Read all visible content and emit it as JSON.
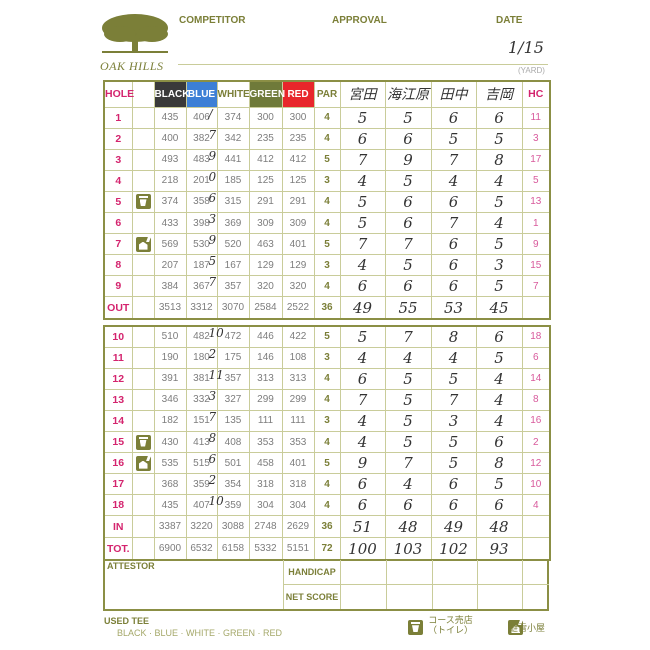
{
  "logo": {
    "text": "OAK HILLS",
    "icon": "oak-tree-icon"
  },
  "header": {
    "competitor": "COMPETITOR",
    "approval": "APPROVAL",
    "date": "DATE",
    "date_value": "1/15",
    "yard": "(YARD)"
  },
  "columns": {
    "hole": "HOLE",
    "black": "BLACK",
    "blue": "BLUE",
    "white": "WHITE",
    "green": "GREEN",
    "red": "RED",
    "par": "PAR",
    "hc": "HC"
  },
  "players": [
    "宮田",
    "海江原",
    "田中",
    "吉岡"
  ],
  "front": [
    {
      "hole": "1",
      "icon": "",
      "black": "435",
      "blue": "406",
      "white": "374",
      "green": "300",
      "red": "300",
      "par": "4",
      "mark": "/",
      "scores": [
        "5",
        "5",
        "6",
        "6"
      ],
      "hc": "11"
    },
    {
      "hole": "2",
      "icon": "",
      "black": "400",
      "blue": "382",
      "white": "342",
      "green": "235",
      "red": "235",
      "par": "4",
      "mark": "7",
      "scores": [
        "6",
        "6",
        "5",
        "5"
      ],
      "hc": "3"
    },
    {
      "hole": "3",
      "icon": "",
      "black": "493",
      "blue": "483",
      "white": "441",
      "green": "412",
      "red": "412",
      "par": "5",
      "mark": "9",
      "scores": [
        "7",
        "9",
        "7",
        "8"
      ],
      "hc": "17"
    },
    {
      "hole": "4",
      "icon": "",
      "black": "218",
      "blue": "201",
      "white": "185",
      "green": "125",
      "red": "125",
      "par": "3",
      "mark": "0",
      "scores": [
        "4",
        "5",
        "4",
        "4"
      ],
      "hc": "5"
    },
    {
      "hole": "5",
      "icon": "shop",
      "black": "374",
      "blue": "358",
      "white": "315",
      "green": "291",
      "red": "291",
      "par": "4",
      "mark": "6",
      "scores": [
        "5",
        "6",
        "6",
        "5"
      ],
      "hc": "13"
    },
    {
      "hole": "6",
      "icon": "",
      "black": "433",
      "blue": "398",
      "white": "369",
      "green": "309",
      "red": "309",
      "par": "4",
      "mark": "3",
      "scores": [
        "5",
        "6",
        "7",
        "4"
      ],
      "hc": "1"
    },
    {
      "hole": "7",
      "icon": "shelter",
      "black": "569",
      "blue": "530",
      "white": "520",
      "green": "463",
      "red": "401",
      "par": "5",
      "mark": "9",
      "scores": [
        "7",
        "7",
        "6",
        "5"
      ],
      "hc": "9"
    },
    {
      "hole": "8",
      "icon": "",
      "black": "207",
      "blue": "187",
      "white": "167",
      "green": "129",
      "red": "129",
      "par": "3",
      "mark": "5",
      "scores": [
        "4",
        "5",
        "6",
        "3"
      ],
      "hc": "15"
    },
    {
      "hole": "9",
      "icon": "",
      "black": "384",
      "blue": "367",
      "white": "357",
      "green": "320",
      "red": "320",
      "par": "4",
      "mark": "7",
      "scores": [
        "6",
        "6",
        "6",
        "5"
      ],
      "hc": "7"
    }
  ],
  "out": {
    "label": "OUT",
    "black": "3513",
    "blue": "3312",
    "white": "3070",
    "green": "2584",
    "red": "2522",
    "par": "36",
    "scores": [
      "49",
      "55",
      "53",
      "45"
    ]
  },
  "back": [
    {
      "hole": "10",
      "icon": "",
      "black": "510",
      "blue": "482",
      "white": "472",
      "green": "446",
      "red": "422",
      "par": "5",
      "mark": "10",
      "scores": [
        "5",
        "7",
        "8",
        "6"
      ],
      "hc": "18"
    },
    {
      "hole": "11",
      "icon": "",
      "black": "190",
      "blue": "180",
      "white": "175",
      "green": "146",
      "red": "108",
      "par": "3",
      "mark": "2",
      "scores": [
        "4",
        "4",
        "4",
        "5"
      ],
      "hc": "6"
    },
    {
      "hole": "12",
      "icon": "",
      "black": "391",
      "blue": "381",
      "white": "357",
      "green": "313",
      "red": "313",
      "par": "4",
      "mark": "11",
      "scores": [
        "6",
        "5",
        "5",
        "4"
      ],
      "hc": "14"
    },
    {
      "hole": "13",
      "icon": "",
      "black": "346",
      "blue": "332",
      "white": "327",
      "green": "299",
      "red": "299",
      "par": "4",
      "mark": "3",
      "scores": [
        "7",
        "5",
        "7",
        "4"
      ],
      "hc": "8"
    },
    {
      "hole": "14",
      "icon": "",
      "black": "182",
      "blue": "151",
      "white": "135",
      "green": "111",
      "red": "111",
      "par": "3",
      "mark": "7",
      "scores": [
        "4",
        "5",
        "3",
        "4"
      ],
      "hc": "16"
    },
    {
      "hole": "15",
      "icon": "shop",
      "black": "430",
      "blue": "413",
      "white": "408",
      "green": "353",
      "red": "353",
      "par": "4",
      "mark": "8",
      "scores": [
        "4",
        "5",
        "5",
        "6"
      ],
      "hc": "2"
    },
    {
      "hole": "16",
      "icon": "shelter",
      "black": "535",
      "blue": "515",
      "white": "501",
      "green": "458",
      "red": "401",
      "par": "5",
      "mark": "6",
      "scores": [
        "9",
        "7",
        "5",
        "8"
      ],
      "hc": "12"
    },
    {
      "hole": "17",
      "icon": "",
      "black": "368",
      "blue": "359",
      "white": "354",
      "green": "318",
      "red": "318",
      "par": "4",
      "mark": "2",
      "scores": [
        "6",
        "4",
        "6",
        "5"
      ],
      "hc": "10"
    },
    {
      "hole": "18",
      "icon": "",
      "black": "435",
      "blue": "407",
      "white": "359",
      "green": "304",
      "red": "304",
      "par": "4",
      "mark": "10",
      "scores": [
        "6",
        "6",
        "6",
        "6"
      ],
      "hc": "4"
    }
  ],
  "in": {
    "label": "IN",
    "black": "3387",
    "blue": "3220",
    "white": "3088",
    "green": "2748",
    "red": "2629",
    "par": "36",
    "scores": [
      "51",
      "48",
      "49",
      "48"
    ]
  },
  "tot": {
    "label": "TOT.",
    "black": "6900",
    "blue": "6532",
    "white": "6158",
    "green": "5332",
    "red": "5151",
    "par": "72",
    "scores": [
      "100",
      "103",
      "102",
      "93"
    ]
  },
  "footer": {
    "attestor": "ATTESTOR",
    "handicap": "HANDICAP",
    "net_score": "NET SCORE",
    "used_tee": "USED TEE",
    "tee_options": "BLACK · BLUE · WHITE · GREEN · RED",
    "legend_shop": "コース売店",
    "legend_shop_sub": "（トイレ）",
    "legend_shelter": "避雷小屋"
  },
  "colors": {
    "olive": "#7b7f38",
    "hole_pink": "#d4246e",
    "black": "#3a3a3a",
    "blue": "#3c7fd6",
    "green": "#6f7a3a",
    "red": "#e8262b"
  }
}
